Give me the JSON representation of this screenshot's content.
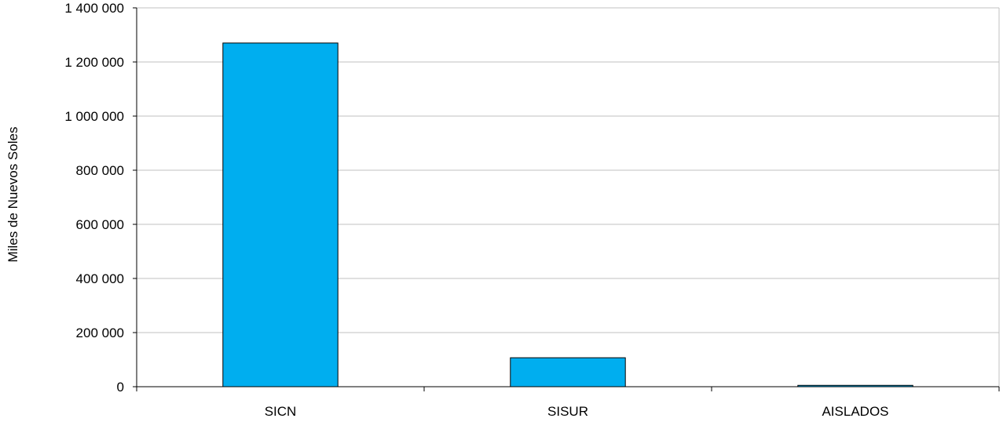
{
  "chart_data": {
    "type": "bar",
    "categories": [
      "SICN",
      "SISUR",
      "AISLADOS"
    ],
    "values": [
      1270000,
      107000,
      5000
    ],
    "ylabel": "Miles de Nuevos Soles",
    "xlabel": "",
    "ylim": [
      0,
      1400000
    ],
    "y_ticks": [
      0,
      200000,
      400000,
      600000,
      800000,
      1000000,
      1200000,
      1400000
    ],
    "y_tick_labels": [
      "0",
      "200 000",
      "400 000",
      "600 000",
      "800 000",
      "1 000 000",
      "1 200 000",
      "1 400 000"
    ],
    "grid": true,
    "bar_color": "#00aeef",
    "bar_edge_color": "#000000",
    "grid_color": "#c0c0c0",
    "axis_color": "#000000"
  }
}
